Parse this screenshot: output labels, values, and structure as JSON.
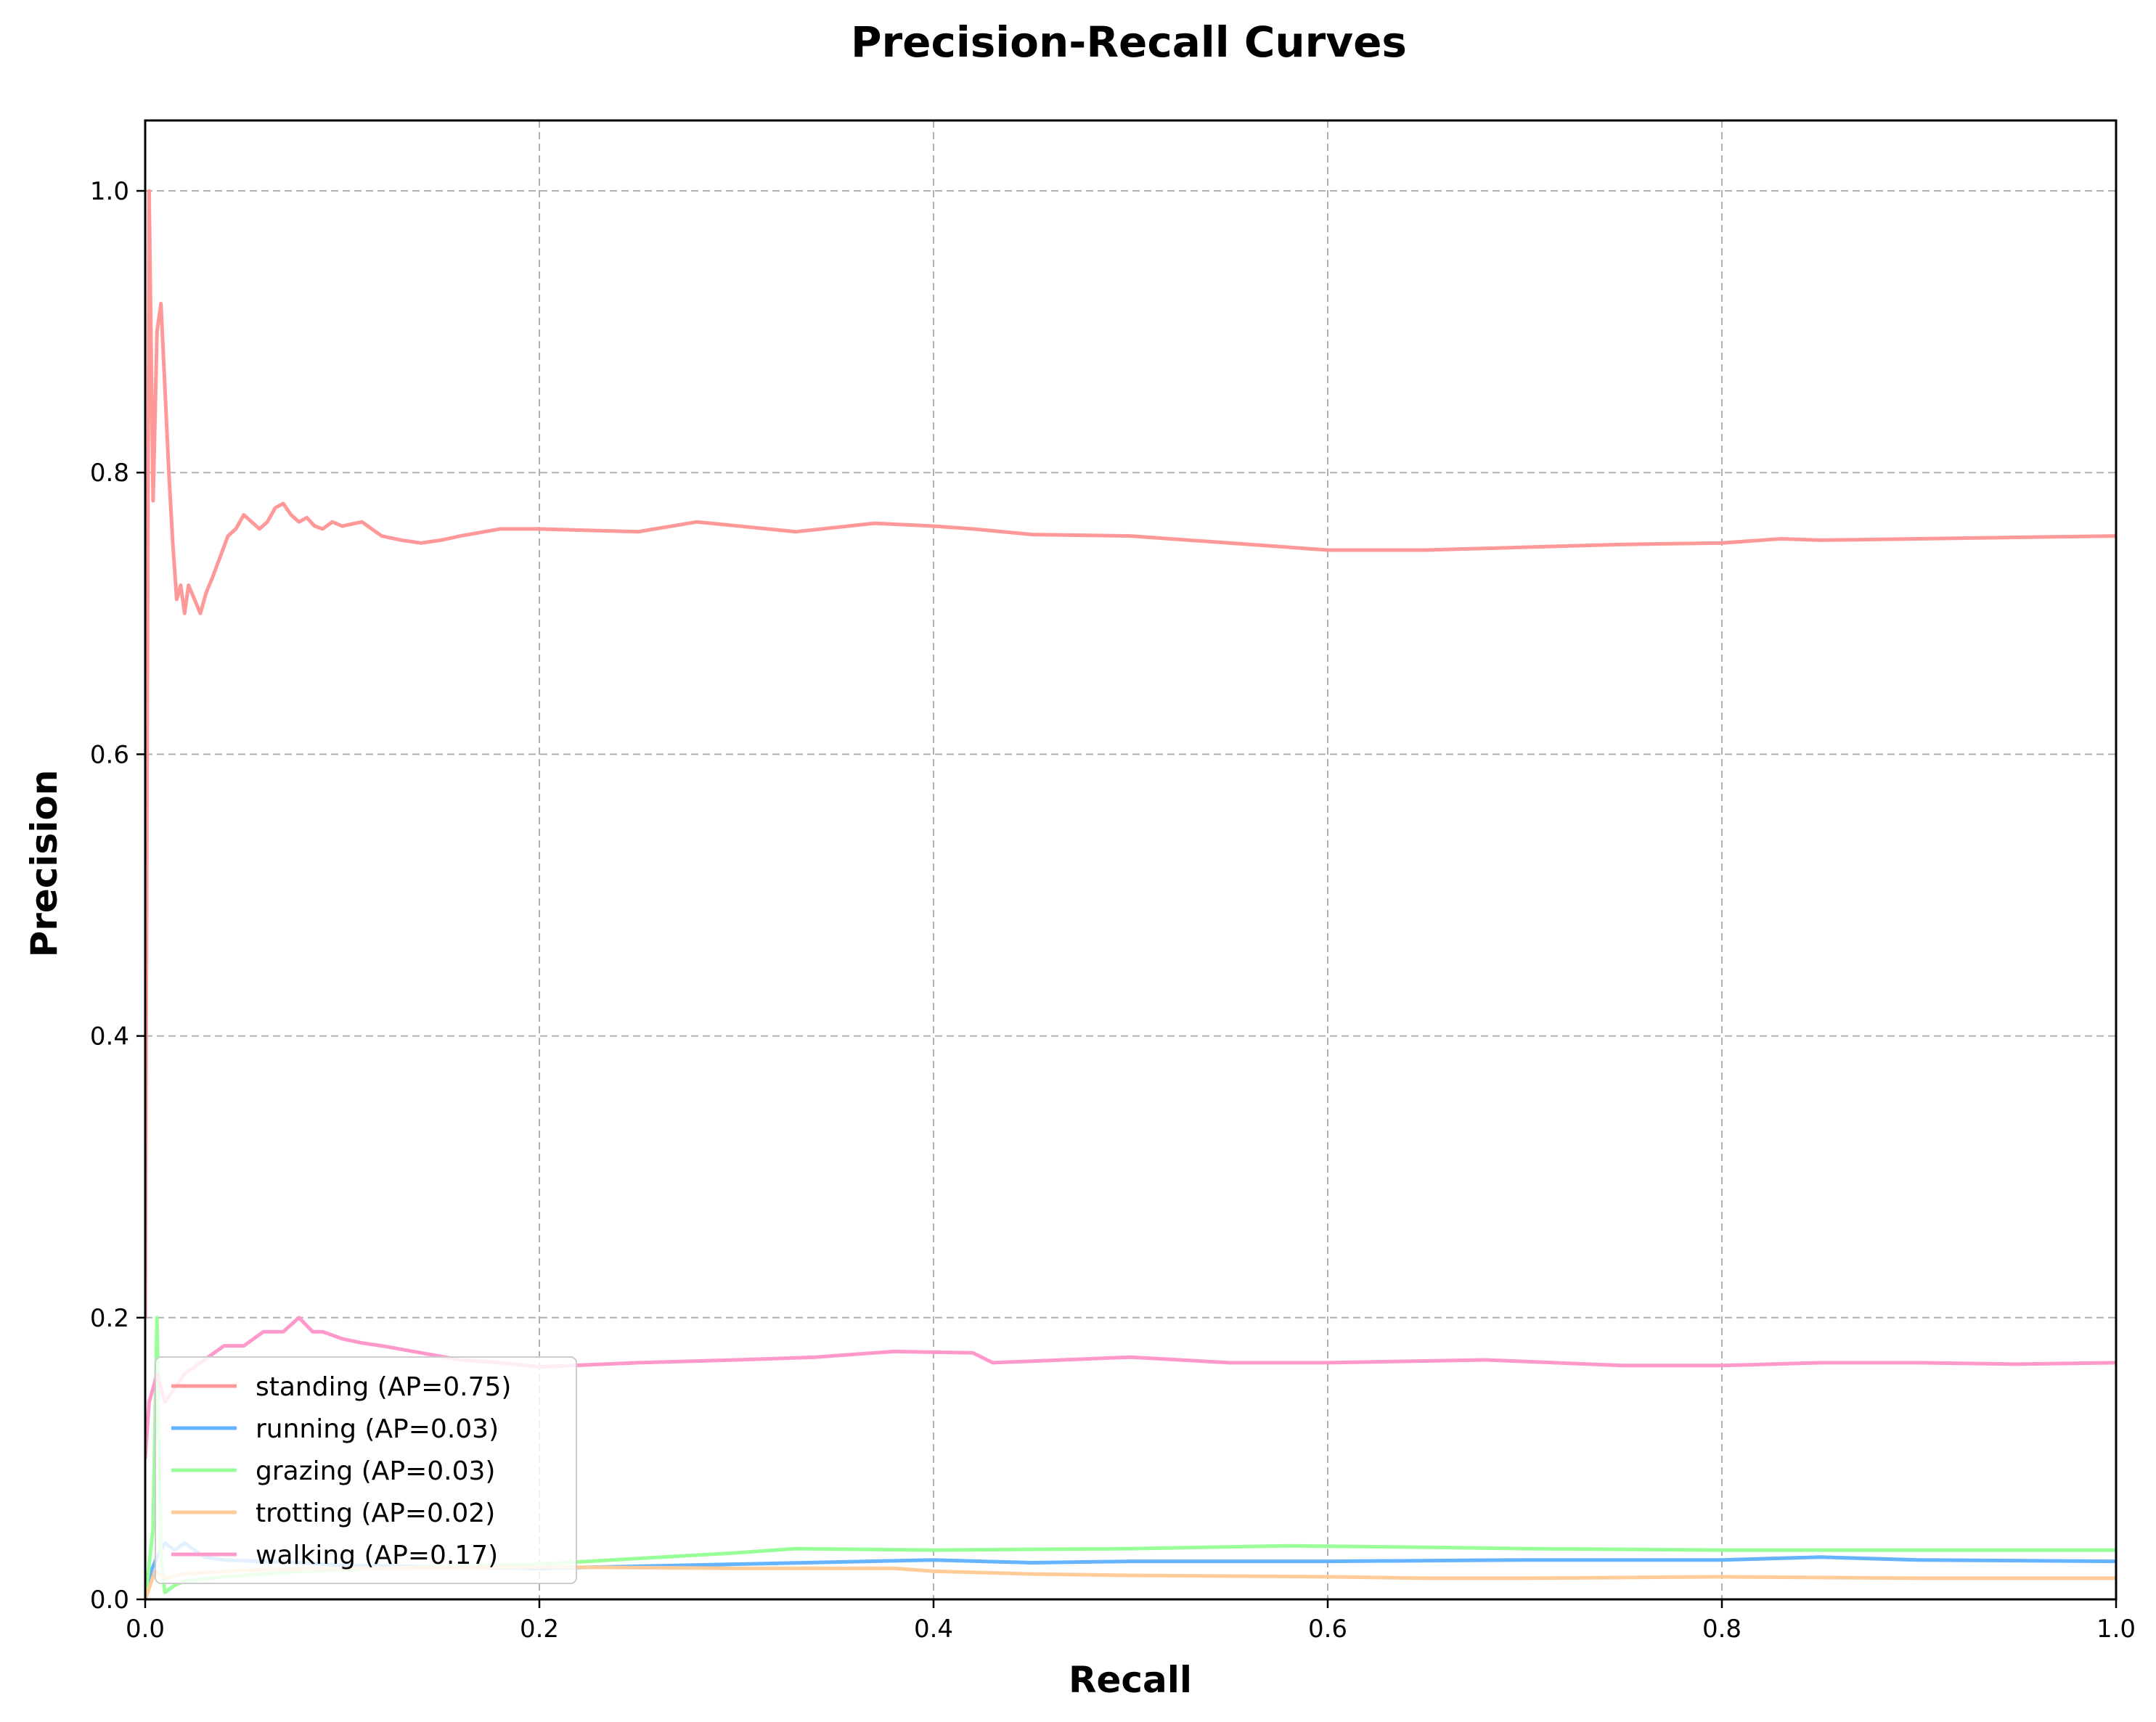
{
  "chart_data": {
    "type": "line",
    "title": "Precision-Recall Curves",
    "xlabel": "Recall",
    "ylabel": "Precision",
    "xlim": [
      0.0,
      1.0
    ],
    "ylim": [
      0.0,
      1.05
    ],
    "xticks": [
      0.0,
      0.2,
      0.4,
      0.6,
      0.8,
      1.0
    ],
    "xtick_labels": [
      "0.0",
      "0.2",
      "0.4",
      "0.6",
      "0.8",
      "1.0"
    ],
    "yticks": [
      0.0,
      0.2,
      0.4,
      0.6,
      0.8,
      1.0
    ],
    "ytick_labels": [
      "0.0",
      "0.2",
      "0.4",
      "0.6",
      "0.8",
      "1.0"
    ],
    "grid": true,
    "legend_position": "lower-left",
    "series": [
      {
        "name": "standing (AP=0.75)",
        "color": "#ff9999",
        "x": [
          0.0,
          0.002,
          0.004,
          0.006,
          0.008,
          0.01,
          0.012,
          0.014,
          0.016,
          0.018,
          0.02,
          0.022,
          0.025,
          0.028,
          0.031,
          0.034,
          0.038,
          0.042,
          0.046,
          0.05,
          0.054,
          0.058,
          0.062,
          0.066,
          0.07,
          0.074,
          0.078,
          0.082,
          0.086,
          0.09,
          0.095,
          0.1,
          0.11,
          0.12,
          0.13,
          0.14,
          0.15,
          0.16,
          0.18,
          0.2,
          0.25,
          0.28,
          0.33,
          0.37,
          0.4,
          0.42,
          0.45,
          0.5,
          0.55,
          0.6,
          0.65,
          0.7,
          0.75,
          0.8,
          0.83,
          0.85,
          0.9,
          0.95,
          1.0
        ],
        "y": [
          0.2,
          1.0,
          0.78,
          0.9,
          0.92,
          0.86,
          0.8,
          0.75,
          0.71,
          0.72,
          0.7,
          0.72,
          0.71,
          0.7,
          0.715,
          0.725,
          0.74,
          0.755,
          0.76,
          0.77,
          0.765,
          0.76,
          0.765,
          0.775,
          0.778,
          0.77,
          0.765,
          0.768,
          0.762,
          0.76,
          0.765,
          0.762,
          0.765,
          0.755,
          0.752,
          0.75,
          0.752,
          0.755,
          0.76,
          0.76,
          0.758,
          0.765,
          0.758,
          0.764,
          0.762,
          0.76,
          0.756,
          0.755,
          0.75,
          0.745,
          0.745,
          0.747,
          0.749,
          0.75,
          0.753,
          0.752,
          0.753,
          0.754,
          0.755
        ]
      },
      {
        "name": "running (AP=0.03)",
        "color": "#66b3ff",
        "x": [
          0.0,
          0.003,
          0.006,
          0.01,
          0.015,
          0.02,
          0.03,
          0.04,
          0.06,
          0.08,
          0.1,
          0.15,
          0.2,
          0.3,
          0.4,
          0.45,
          0.5,
          0.6,
          0.7,
          0.8,
          0.85,
          0.9,
          1.0
        ],
        "y": [
          0.0,
          0.02,
          0.03,
          0.04,
          0.035,
          0.04,
          0.03,
          0.028,
          0.027,
          0.026,
          0.024,
          0.023,
          0.022,
          0.025,
          0.028,
          0.026,
          0.027,
          0.027,
          0.028,
          0.028,
          0.03,
          0.028,
          0.027
        ]
      },
      {
        "name": "grazing (AP=0.03)",
        "color": "#99ff99",
        "x": [
          0.0,
          0.004,
          0.006,
          0.008,
          0.01,
          0.015,
          0.02,
          0.04,
          0.08,
          0.12,
          0.2,
          0.3,
          0.33,
          0.4,
          0.5,
          0.58,
          0.65,
          0.7,
          0.8,
          0.9,
          1.0
        ],
        "y": [
          0.0,
          0.05,
          0.2,
          0.03,
          0.005,
          0.01,
          0.013,
          0.016,
          0.02,
          0.022,
          0.025,
          0.033,
          0.036,
          0.035,
          0.036,
          0.038,
          0.037,
          0.036,
          0.035,
          0.035,
          0.035
        ]
      },
      {
        "name": "trotting (AP=0.02)",
        "color": "#ffcc99",
        "x": [
          0.0,
          0.005,
          0.01,
          0.02,
          0.04,
          0.06,
          0.1,
          0.2,
          0.3,
          0.38,
          0.4,
          0.45,
          0.5,
          0.6,
          0.65,
          0.7,
          0.8,
          0.9,
          1.0
        ],
        "y": [
          0.0,
          0.02,
          0.015,
          0.018,
          0.02,
          0.021,
          0.022,
          0.023,
          0.022,
          0.022,
          0.02,
          0.018,
          0.017,
          0.016,
          0.015,
          0.015,
          0.016,
          0.015,
          0.015
        ]
      },
      {
        "name": "walking (AP=0.17)",
        "color": "#ff99cc",
        "x": [
          0.0,
          0.002,
          0.004,
          0.006,
          0.01,
          0.015,
          0.02,
          0.03,
          0.04,
          0.05,
          0.06,
          0.07,
          0.078,
          0.085,
          0.09,
          0.1,
          0.11,
          0.12,
          0.14,
          0.16,
          0.18,
          0.2,
          0.25,
          0.3,
          0.34,
          0.38,
          0.42,
          0.43,
          0.5,
          0.55,
          0.6,
          0.68,
          0.75,
          0.8,
          0.85,
          0.9,
          0.95,
          1.0
        ],
        "y": [
          0.1,
          0.14,
          0.15,
          0.16,
          0.14,
          0.15,
          0.16,
          0.17,
          0.18,
          0.18,
          0.19,
          0.19,
          0.2,
          0.19,
          0.19,
          0.185,
          0.182,
          0.18,
          0.175,
          0.17,
          0.168,
          0.165,
          0.168,
          0.17,
          0.172,
          0.176,
          0.175,
          0.168,
          0.172,
          0.168,
          0.168,
          0.17,
          0.166,
          0.166,
          0.168,
          0.168,
          0.167,
          0.168
        ]
      }
    ]
  }
}
